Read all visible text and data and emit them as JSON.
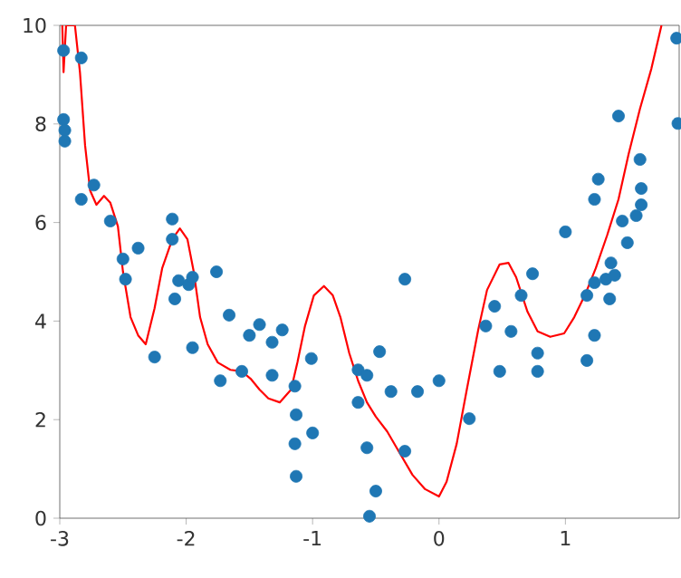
{
  "chart_data": {
    "type": "scatter",
    "xlim": [
      -3,
      1.9
    ],
    "ylim": [
      0,
      10
    ],
    "xticks": [
      -3,
      -2,
      -1,
      0,
      1
    ],
    "yticks": [
      0,
      2,
      4,
      6,
      8,
      10
    ],
    "grid": false,
    "series": [
      {
        "color": "#1f77b4",
        "marker": "circle",
        "x": [
          -2.97,
          -2.83,
          -2.97,
          -2.96,
          -2.96,
          -2.83,
          -2.73,
          -2.6,
          -2.5,
          -2.48,
          -2.38,
          -2.11,
          -2.11,
          -2.06,
          -1.98,
          -1.95,
          -2.09,
          -1.76,
          -2.25,
          -1.95,
          -1.73,
          -1.66,
          -1.56,
          -1.5,
          -1.42,
          -1.32,
          -1.32,
          -1.24,
          -1.14,
          -1.13,
          -1.14,
          -1.13,
          -1.01,
          -1.0,
          -0.64,
          -0.64,
          -0.57,
          -0.27,
          -0.57,
          -0.47,
          -0.38,
          -0.17,
          0.0,
          -0.27,
          -0.5,
          -0.55,
          0.24,
          0.37,
          0.44,
          0.48,
          0.57,
          0.65,
          0.74,
          0.78,
          0.78,
          1.17,
          1.23,
          1.17,
          1.23,
          1.35,
          1.32,
          1.39,
          1.88,
          1.89,
          1.42,
          1.59,
          1.26,
          1.23,
          1.6,
          1.6,
          1.56,
          1.45,
          1.0,
          1.49,
          1.36
        ],
        "values": [
          9.49,
          9.34,
          8.09,
          7.87,
          7.65,
          6.47,
          6.76,
          6.03,
          5.26,
          4.85,
          5.48,
          6.07,
          5.66,
          4.82,
          4.74,
          4.89,
          4.45,
          5.0,
          3.27,
          3.46,
          2.79,
          4.12,
          2.98,
          3.71,
          3.93,
          3.57,
          2.9,
          3.82,
          2.68,
          2.1,
          1.51,
          0.85,
          3.24,
          1.73,
          3.01,
          2.35,
          1.43,
          4.85,
          2.9,
          3.38,
          2.57,
          2.57,
          2.79,
          1.36,
          0.55,
          0.04,
          2.02,
          3.9,
          4.3,
          2.98,
          3.79,
          4.52,
          4.96,
          3.35,
          2.98,
          3.2,
          3.71,
          4.52,
          4.78,
          4.45,
          4.85,
          4.93,
          9.74,
          8.01,
          8.16,
          7.28,
          6.88,
          6.47,
          6.69,
          6.36,
          6.14,
          6.03,
          5.81,
          5.59,
          5.18
        ]
      },
      {
        "type": "line",
        "color": "#ff0000",
        "marker": "none",
        "line_style": "solid",
        "x": [
          -2.98,
          -2.97,
          -2.95,
          -2.88,
          -2.84,
          -2.8,
          -2.76,
          -2.71,
          -2.65,
          -2.6,
          -2.54,
          -2.5,
          -2.44,
          -2.38,
          -2.32,
          -2.25,
          -2.19,
          -2.11,
          -2.05,
          -1.99,
          -1.94,
          -1.89,
          -1.83,
          -1.75,
          -1.65,
          -1.56,
          -1.49,
          -1.42,
          -1.35,
          -1.26,
          -1.17,
          -1.12,
          -1.06,
          -0.99,
          -0.91,
          -0.84,
          -0.78,
          -0.71,
          -0.64,
          -0.57,
          -0.5,
          -0.41,
          -0.31,
          -0.21,
          -0.11,
          0.0,
          0.06,
          0.14,
          0.22,
          0.31,
          0.38,
          0.48,
          0.55,
          0.61,
          0.7,
          0.78,
          0.88,
          0.99,
          1.07,
          1.16,
          1.24,
          1.33,
          1.42,
          1.5,
          1.59,
          1.68,
          1.76
        ],
        "values": [
          10,
          9.05,
          10,
          10,
          9.04,
          7.57,
          6.65,
          6.36,
          6.54,
          6.4,
          5.92,
          5.0,
          4.08,
          3.71,
          3.53,
          4.26,
          5.07,
          5.66,
          5.88,
          5.66,
          5.0,
          4.08,
          3.53,
          3.16,
          3.01,
          2.98,
          2.83,
          2.61,
          2.43,
          2.35,
          2.61,
          3.16,
          3.9,
          4.52,
          4.71,
          4.52,
          4.08,
          3.35,
          2.79,
          2.35,
          2.06,
          1.76,
          1.32,
          0.88,
          0.59,
          0.44,
          0.74,
          1.51,
          2.61,
          3.82,
          4.63,
          5.15,
          5.18,
          4.89,
          4.19,
          3.79,
          3.68,
          3.75,
          4.08,
          4.56,
          5.07,
          5.74,
          6.47,
          7.39,
          8.31,
          9.12,
          10.0
        ]
      }
    ]
  }
}
